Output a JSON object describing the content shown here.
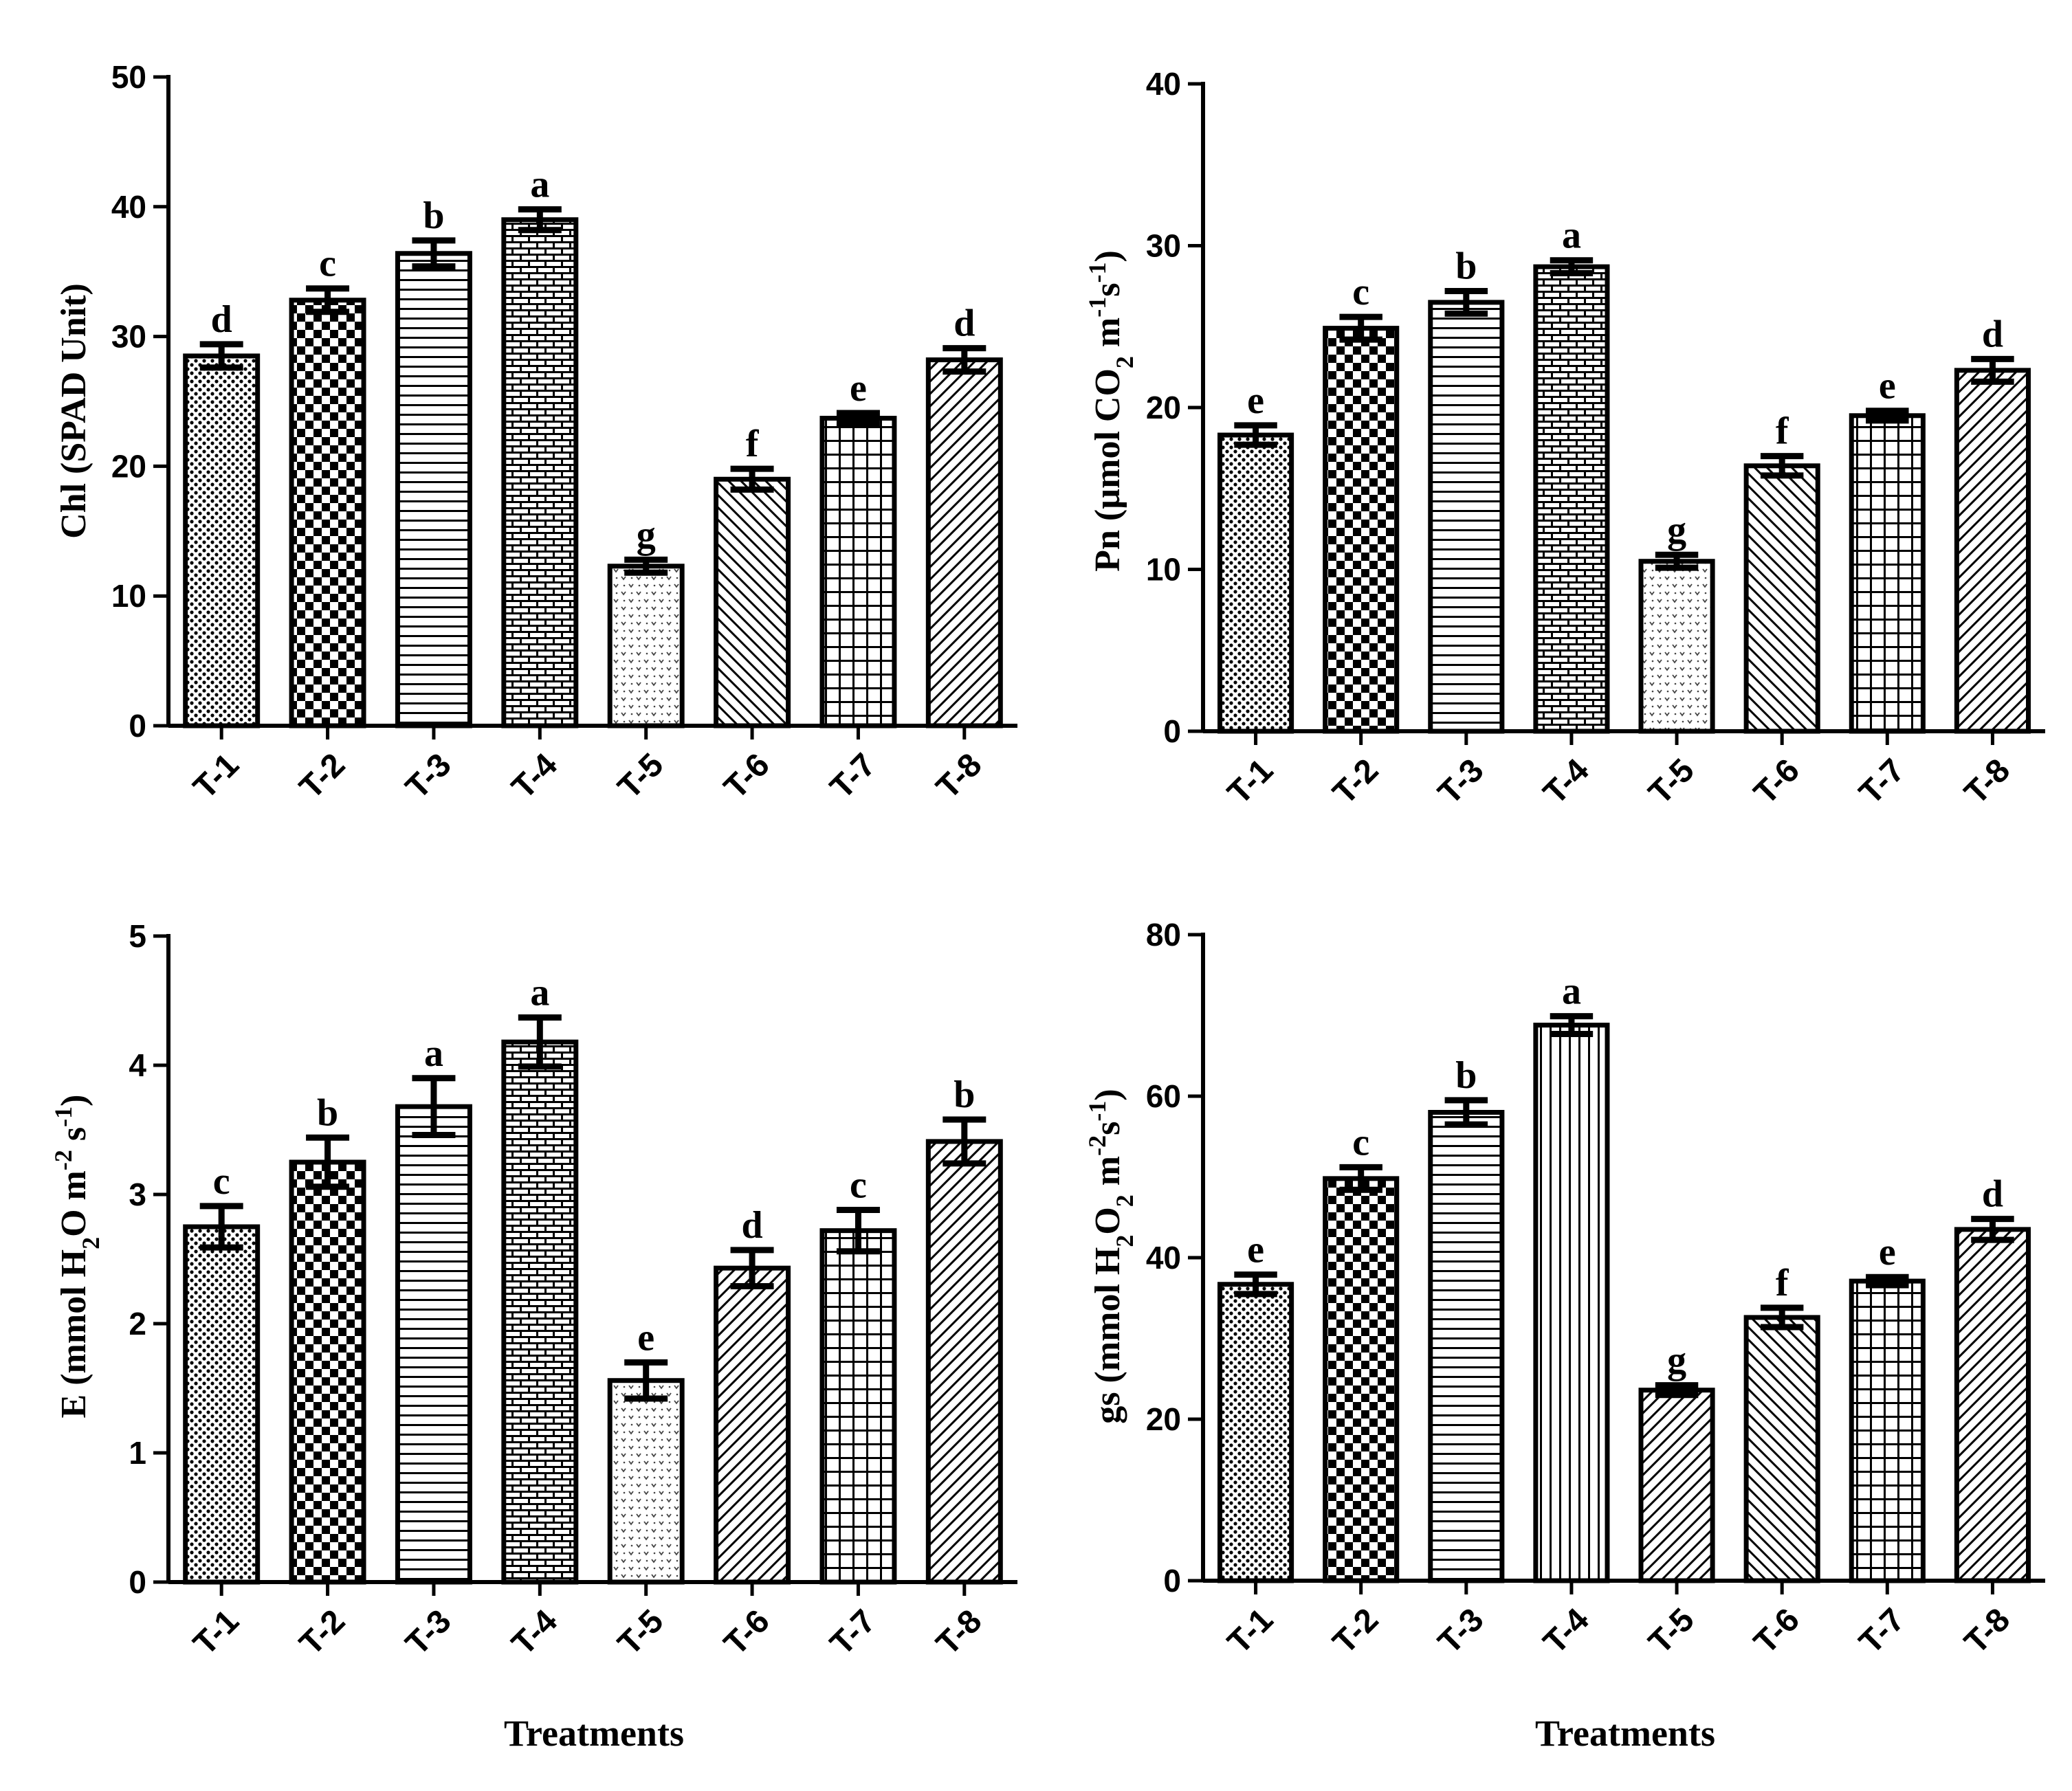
{
  "chart_data": [
    {
      "type": "bar",
      "panel": "top-left",
      "ylabel_pre": "Chl (SPAD Unit)",
      "ylabel_sub": "",
      "ylabel_mid": "",
      "ylabel_sup1": "",
      "ylabel_mid2": "",
      "ylabel_sup2": "",
      "ylabel_post": "",
      "xlabel": "",
      "ylim": [
        0,
        50
      ],
      "yticks": [
        "0",
        "10",
        "20",
        "30",
        "40",
        "50"
      ],
      "categories": [
        "T-1",
        "T-2",
        "T-3",
        "T-4",
        "T-5",
        "T-6",
        "T-7",
        "T-8"
      ],
      "values": [
        28.5,
        32.8,
        36.4,
        39.0,
        12.3,
        19.0,
        23.7,
        28.2
      ],
      "errors": [
        0.9,
        0.9,
        1.0,
        0.8,
        0.5,
        0.8,
        0.4,
        0.9
      ],
      "letters": [
        "d",
        "c",
        "b",
        "a",
        "g",
        "f",
        "e",
        "d"
      ],
      "patterns": [
        "fine-dots",
        "checker",
        "hlines",
        "bricks",
        "dots-v",
        "diag-back",
        "grid",
        "diag-fwd"
      ]
    },
    {
      "type": "bar",
      "panel": "top-right",
      "ylabel_pre": "Pn (µmol CO",
      "ylabel_sub": "2",
      "ylabel_mid": " m",
      "ylabel_sup1": "-1",
      "ylabel_mid2": "s",
      "ylabel_sup2": "-1",
      "ylabel_post": ")",
      "xlabel": "",
      "ylim": [
        0,
        40
      ],
      "yticks": [
        "0",
        "10",
        "20",
        "30",
        "40"
      ],
      "categories": [
        "T-1",
        "T-2",
        "T-3",
        "T-4",
        "T-5",
        "T-6",
        "T-7",
        "T-8"
      ],
      "values": [
        18.3,
        24.9,
        26.5,
        28.7,
        10.5,
        16.4,
        19.5,
        22.3
      ],
      "errors": [
        0.6,
        0.7,
        0.7,
        0.4,
        0.4,
        0.6,
        0.3,
        0.7
      ],
      "letters": [
        "e",
        "c",
        "b",
        "a",
        "g",
        "f",
        "e",
        "d"
      ],
      "patterns": [
        "fine-dots",
        "checker",
        "hlines",
        "bricks",
        "dots-v",
        "diag-back",
        "grid",
        "diag-fwd"
      ]
    },
    {
      "type": "bar",
      "panel": "bottom-left",
      "ylabel_pre": "E (mmol H",
      "ylabel_sub": "2",
      "ylabel_mid": "O m",
      "ylabel_sup1": "-2",
      "ylabel_mid2": " s",
      "ylabel_sup2": "-1",
      "ylabel_post": ")",
      "xlabel": "Treatments",
      "ylim": [
        0,
        5
      ],
      "yticks": [
        "0",
        "1",
        "2",
        "3",
        "4",
        "5"
      ],
      "categories": [
        "T-1",
        "T-2",
        "T-3",
        "T-4",
        "T-5",
        "T-6",
        "T-7",
        "T-8"
      ],
      "values": [
        2.75,
        3.25,
        3.68,
        4.18,
        1.56,
        2.43,
        2.72,
        3.41
      ],
      "errors": [
        0.16,
        0.19,
        0.22,
        0.19,
        0.14,
        0.14,
        0.16,
        0.17
      ],
      "letters": [
        "c",
        "b",
        "a",
        "a",
        "e",
        "d",
        "c",
        "b"
      ],
      "patterns": [
        "fine-dots",
        "checker",
        "hlines",
        "bricks",
        "dots-v",
        "diag-fwd",
        "grid",
        "diag-fwd"
      ]
    },
    {
      "type": "bar",
      "panel": "bottom-right",
      "ylabel_pre": "gs (mmol H",
      "ylabel_sub": "2",
      "ylabel_mid": "O",
      "ylabel_sup1": "",
      "ylabel_sub2": "2",
      "ylabel_mid2": " m",
      "ylabel_sup2": "-2",
      "ylabel_mid3": "s",
      "ylabel_sup3": "-1",
      "ylabel_post": ")",
      "xlabel": "Treatments",
      "ylim": [
        0,
        80
      ],
      "yticks": [
        "0",
        "20",
        "40",
        "60",
        "80"
      ],
      "categories": [
        "T-1",
        "T-2",
        "T-3",
        "T-4",
        "T-5",
        "T-6",
        "T-7",
        "T-8"
      ],
      "values": [
        36.7,
        49.8,
        58.0,
        68.8,
        23.6,
        32.6,
        37.1,
        43.5
      ],
      "errors": [
        1.2,
        1.4,
        1.5,
        1.1,
        0.6,
        1.2,
        0.5,
        1.3
      ],
      "letters": [
        "e",
        "c",
        "b",
        "a",
        "g",
        "f",
        "e",
        "d"
      ],
      "patterns": [
        "fine-dots",
        "checker",
        "hlines",
        "vlines",
        "diag-fwd",
        "diag-back",
        "grid",
        "diag-fwd"
      ]
    }
  ]
}
